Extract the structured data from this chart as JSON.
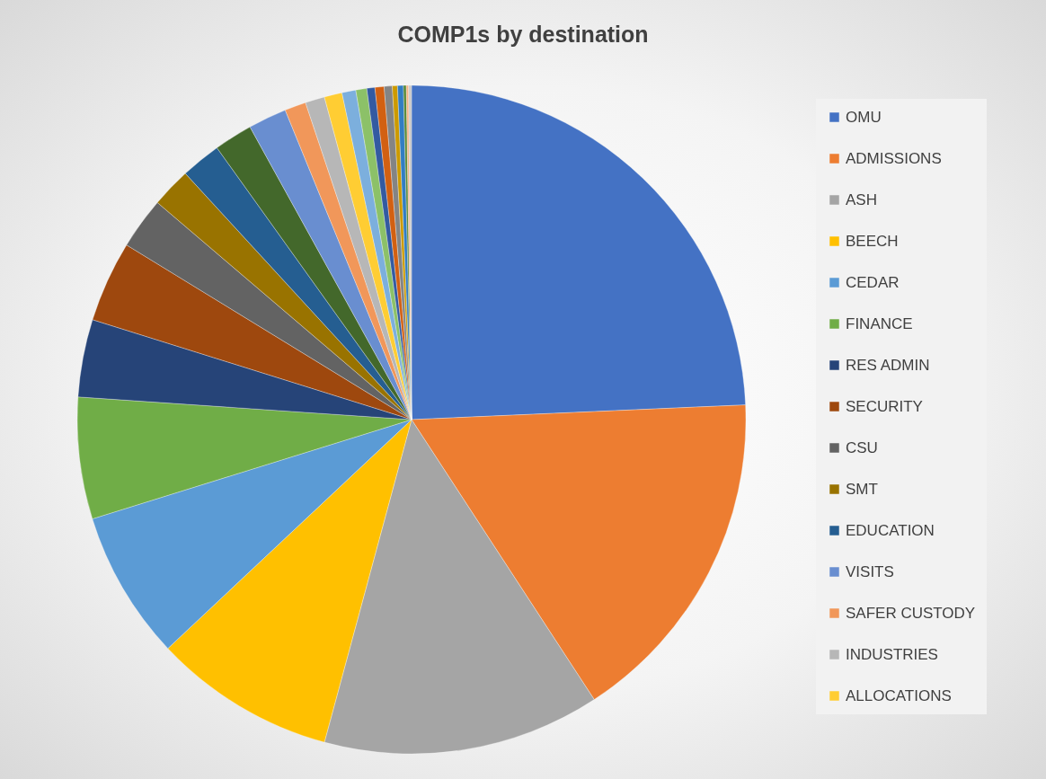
{
  "chart_data": {
    "type": "pie",
    "title": "COMP1s by destination",
    "legend": "right",
    "categories": [
      "OMU",
      "ADMISSIONS",
      "ASH",
      "BEECH",
      "CEDAR",
      "FINANCE",
      "RES ADMIN",
      "SECURITY",
      "CSU",
      "SMT",
      "EDUCATION",
      null,
      "VISITS",
      "SAFER CUSTODY",
      "INDUSTRIES",
      "ALLOCATIONS",
      null,
      null,
      null,
      null,
      null,
      null,
      null,
      null,
      null,
      null
    ],
    "values": [
      24.3,
      16.5,
      13.4,
      8.8,
      7.2,
      5.88,
      3.75,
      3.92,
      2.5,
      1.92,
      1.94,
      1.86,
      1.86,
      1.03,
      0.94,
      0.86,
      0.67,
      0.53,
      0.39,
      0.44,
      0.39,
      0.25,
      0.28,
      0.14,
      0.11,
      0.14
    ],
    "colors": [
      "#4472c4",
      "#ed7d31",
      "#a5a5a5",
      "#ffc000",
      "#5b9bd5",
      "#70ad47",
      "#264478",
      "#9e480e",
      "#636363",
      "#997300",
      "#255e91",
      "#43682b",
      "#698ed0",
      "#f1975a",
      "#b7b7b7",
      "#ffcd33",
      "#7cafdd",
      "#8cc168",
      "#335aa1",
      "#d26012",
      "#848484",
      "#cc9a00",
      "#327dc2",
      "#5a8a39",
      "#f4b183",
      "#c9c9c9"
    ]
  }
}
